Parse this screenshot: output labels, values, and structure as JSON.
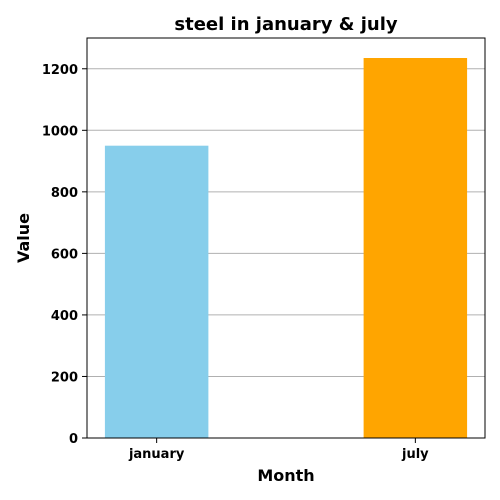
{
  "chart_data": {
    "type": "bar",
    "title": "steel in january & july",
    "xlabel": "Month",
    "ylabel": "Value",
    "categories": [
      "january",
      "july"
    ],
    "values": [
      950,
      1235
    ],
    "colors": [
      "#87CEEB",
      "#FFA500"
    ],
    "ylim": [
      0,
      1300
    ],
    "yticks": [
      0,
      200,
      400,
      600,
      800,
      1000,
      1200
    ],
    "grid": "horizontal"
  }
}
